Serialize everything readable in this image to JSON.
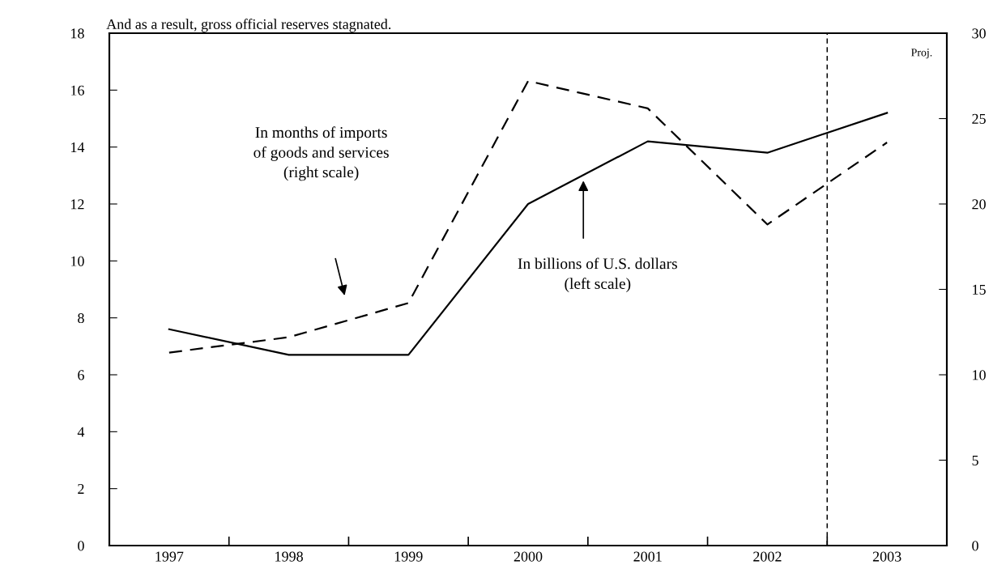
{
  "chart_data": {
    "type": "line",
    "title": "And as a result, gross official reserves stagnated.",
    "x": [
      1997,
      1998,
      1999,
      2000,
      2001,
      2002,
      2003
    ],
    "series": [
      {
        "color": "#000000",
        "line_style": "solid",
        "values": [
          7.6,
          6.7,
          6.7,
          12.0,
          14.2,
          13.8,
          15.2
        ]
      },
      {
        "color": "#000000",
        "line_style": "dashed",
        "axis": "y2",
        "values": [
          11.3,
          12.2,
          14.2,
          27.2,
          25.6,
          18.8,
          23.6
        ]
      }
    ],
    "xlim": [
      1996.5,
      2003.5
    ],
    "xticks": [
      {
        "value": 1997,
        "label": "1997"
      },
      {
        "value": 1997.5,
        "label": null
      },
      {
        "value": 1998,
        "label": "1998"
      },
      {
        "value": 1998.5,
        "label": null
      },
      {
        "value": 1999,
        "label": "1999"
      },
      {
        "value": 1999.5,
        "label": null
      },
      {
        "value": 2000,
        "label": "2000"
      },
      {
        "value": 2000.5,
        "label": null
      },
      {
        "value": 2001,
        "label": "2001"
      },
      {
        "value": 2001.5,
        "label": null
      },
      {
        "value": 2002,
        "label": "2002"
      },
      {
        "value": 2002.5,
        "label": null
      },
      {
        "value": 2003,
        "label": "2003"
      }
    ],
    "ylim": [
      0,
      18
    ],
    "yticks": [
      0,
      2,
      4,
      6,
      8,
      10,
      12,
      14,
      16,
      18
    ],
    "y2lim": [
      0,
      30
    ],
    "y2ticks": [
      0,
      5,
      10,
      15,
      20,
      25,
      30
    ],
    "ref_lines": [
      {
        "axis": "x",
        "value": 2002.5,
        "label": "Proj.",
        "line_style": "dashed",
        "color": "#000000"
      }
    ],
    "annotations": [
      "In months of imports\nof goods and services\n(right scale)",
      "In billions of U.S. dollars\n(left scale)"
    ],
    "grid": false,
    "legend": false,
    "marker": "none"
  }
}
